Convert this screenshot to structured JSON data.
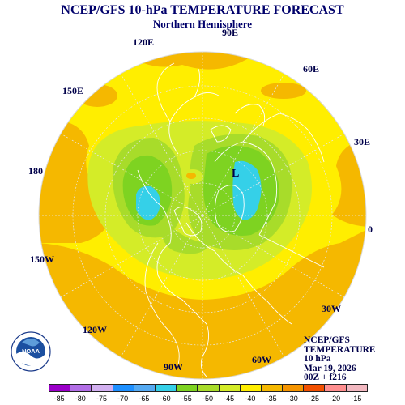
{
  "header": {
    "title": "NCEP/GFS 10-hPa TEMPERATURE FORECAST",
    "subtitle": "Northern Hemisphere"
  },
  "longitude_labels": [
    {
      "id": "90e",
      "text": "90E"
    },
    {
      "id": "120e",
      "text": "120E"
    },
    {
      "id": "60e",
      "text": "60E"
    },
    {
      "id": "150e",
      "text": "150E"
    },
    {
      "id": "30e",
      "text": "30E"
    },
    {
      "id": "180",
      "text": "180"
    },
    {
      "id": "0",
      "text": "0"
    },
    {
      "id": "150w",
      "text": "150W"
    },
    {
      "id": "30w",
      "text": "30W"
    },
    {
      "id": "120w",
      "text": "120W"
    },
    {
      "id": "60w",
      "text": "60W"
    },
    {
      "id": "90w",
      "text": "90W"
    }
  ],
  "low_marker": "L",
  "info": {
    "line1": "NCEP/GFS",
    "line2": "TEMPERATURE",
    "line3": "10 hPa",
    "line4": "Mar 19, 2026",
    "line5": "00Z + f216"
  },
  "legend": {
    "colors": [
      "#9a00c8",
      "#b26ee6",
      "#d2b0f0",
      "#1e90ff",
      "#55aaf2",
      "#35d0e8",
      "#7ed321",
      "#a8dc2a",
      "#d4ec28",
      "#ffee00",
      "#f5b800",
      "#f59400",
      "#f25000",
      "#ff8e8e",
      "#f2b8c0"
    ],
    "ticks": [
      "-85",
      "-80",
      "-75",
      "-70",
      "-65",
      "-60",
      "-55",
      "-50",
      "-45",
      "-40",
      "-35",
      "-30",
      "-25",
      "-20",
      "-15"
    ]
  },
  "logo": {
    "name": "noaa-logo",
    "text": "NOAA"
  },
  "colors": {
    "orange": "#f5b800",
    "yellow": "#ffee00",
    "yellow_green": "#d4ec28",
    "green": "#a8dc2a",
    "bright_green": "#7ed321",
    "cyan": "#35d0e8"
  }
}
